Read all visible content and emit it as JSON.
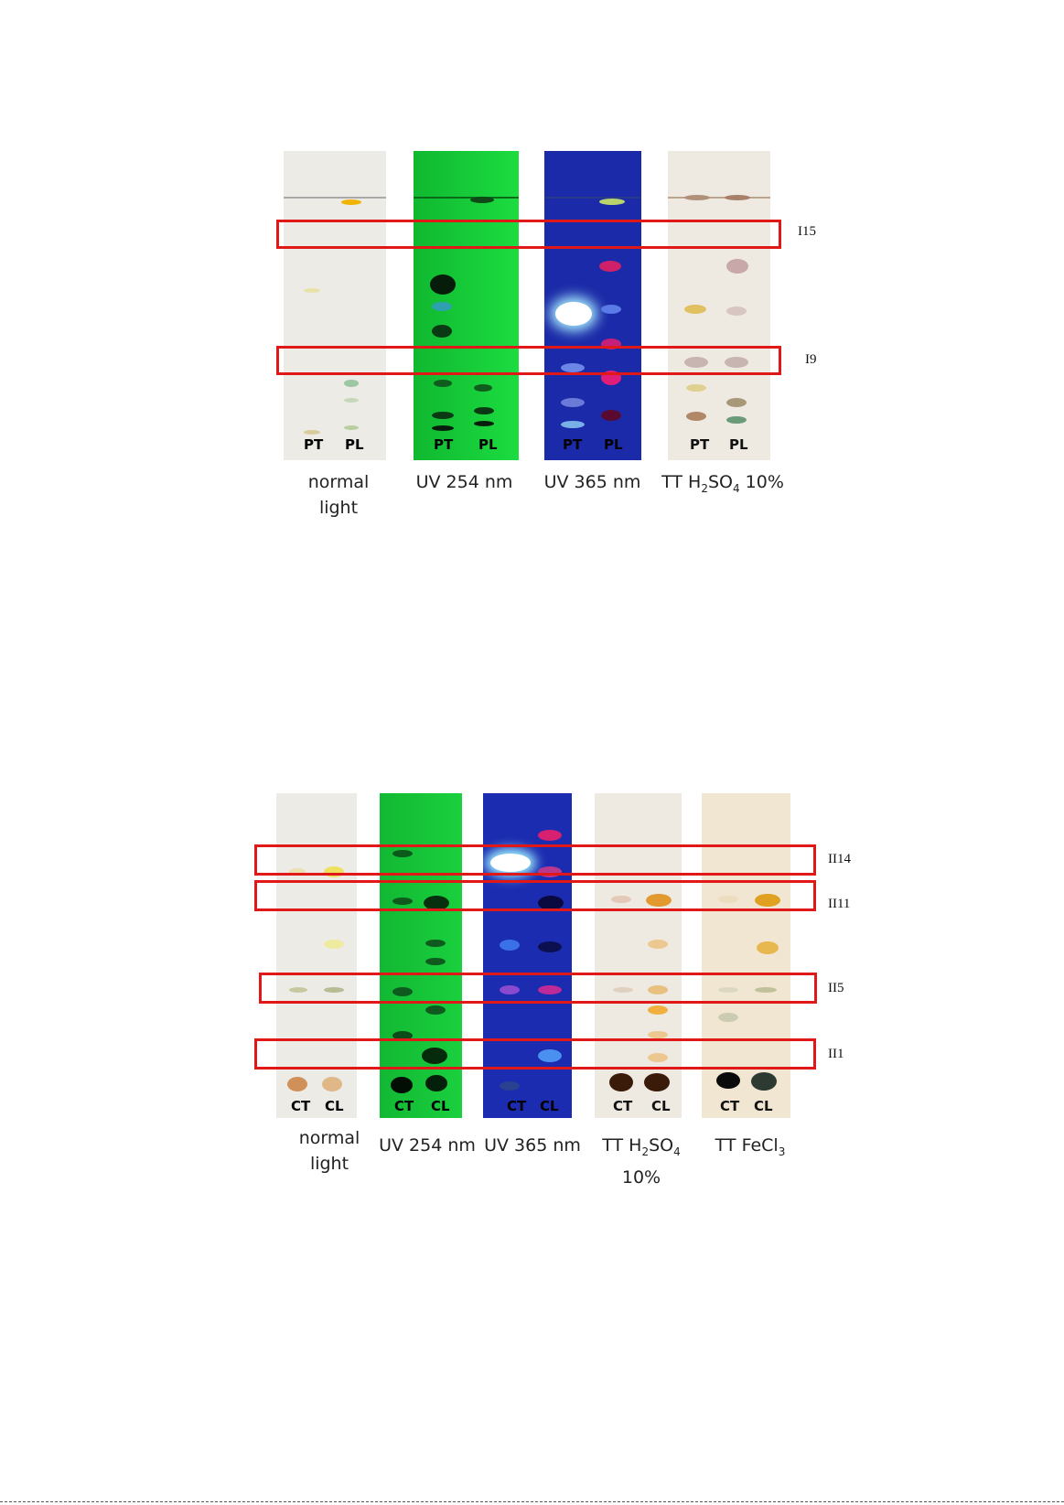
{
  "figure1": {
    "plates": [
      {
        "caption": "normal light",
        "lanes": [
          "PT",
          "PL"
        ]
      },
      {
        "caption": "UV 254 nm",
        "lanes": [
          "PT",
          "PL"
        ]
      },
      {
        "caption": "UV 365 nm",
        "lanes": [
          "PT",
          "PL"
        ]
      },
      {
        "caption_prefix": "TT H",
        "caption_sub1": "2",
        "caption_mid": "SO",
        "caption_sub2": "4",
        "caption_suffix": " 10%",
        "lanes": [
          "PT",
          "PL"
        ]
      }
    ],
    "markers": [
      "I15",
      "I9"
    ]
  },
  "figure2": {
    "plates": [
      {
        "caption": "normal light",
        "lanes": [
          "CT",
          "CL"
        ]
      },
      {
        "caption": "UV 254 nm",
        "lanes": [
          "CT",
          "CL"
        ]
      },
      {
        "caption": "UV 365 nm",
        "lanes": [
          "CT",
          "CL"
        ]
      },
      {
        "caption_prefix": "TT H",
        "caption_sub1": "2",
        "caption_mid": "SO",
        "caption_sub2": "4",
        "caption_suffix": " 10%",
        "lanes": [
          "CT",
          "CL"
        ]
      },
      {
        "caption_prefix": "TT FeCl",
        "caption_sub1": "3",
        "lanes": [
          "CT",
          "CL"
        ]
      }
    ],
    "markers": [
      "II14",
      "II11",
      "II5",
      "II1"
    ]
  },
  "colors": {
    "box": "#e01818",
    "plate_normal": "#ecebe6",
    "plate_uv254": "#14c838",
    "plate_uv365": "#1b2aa8",
    "plate_h2so4": "#eeeae2",
    "plate_fecl3": "#f1e6d2"
  }
}
